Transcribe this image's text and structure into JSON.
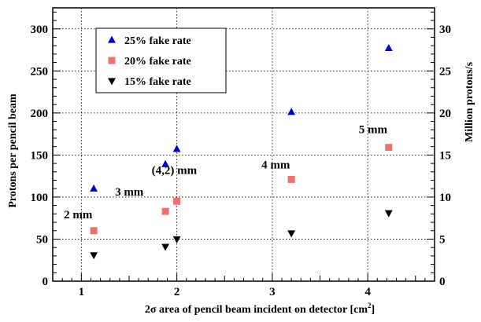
{
  "chart_data": {
    "type": "scatter",
    "xlabel": "2σ area of pencil beam incident on detector [cm²]",
    "xlabel_main": "2σ area of pencil beam incident on detector [cm",
    "xlabel_sup": "2",
    "xlabel_end": "]",
    "ylabel": "Protons per pencil beam",
    "y2label": "Million protons/s",
    "xlim": [
      0.7,
      4.7
    ],
    "ylim": [
      0,
      325
    ],
    "y2lim": [
      0,
      32.5
    ],
    "xticks": [
      1,
      2,
      3,
      4
    ],
    "yticks": [
      0,
      50,
      100,
      150,
      200,
      250,
      300
    ],
    "y2ticks": [
      0,
      5,
      10,
      15,
      20,
      25,
      30
    ],
    "grid": true,
    "legend_position": "top-left",
    "series": [
      {
        "name": "25% fake rate",
        "marker": "triangle-up",
        "color": "#0000cc",
        "x": [
          1.13,
          1.88,
          2.0,
          3.2,
          4.22
        ],
        "y": [
          110,
          139,
          157,
          201,
          277
        ]
      },
      {
        "name": "20% fake rate",
        "marker": "square",
        "color": "#f07070",
        "x": [
          1.13,
          1.88,
          2.0,
          3.2,
          4.22
        ],
        "y": [
          60,
          83,
          95,
          121,
          159
        ]
      },
      {
        "name": "15% fake rate",
        "marker": "triangle-down",
        "color": "#000000",
        "x": [
          1.13,
          1.88,
          2.0,
          3.2,
          4.22
        ],
        "y": [
          31,
          41,
          50,
          57,
          81
        ]
      }
    ],
    "annotations": [
      {
        "text": "2 mm",
        "x": 1.13,
        "y": 60
      },
      {
        "text": "3 mm",
        "x": 1.88,
        "y": 83
      },
      {
        "text": "(4,2) mm",
        "x": 2.0,
        "y": 95
      },
      {
        "text": "4 mm",
        "x": 3.2,
        "y": 121
      },
      {
        "text": "5 mm",
        "x": 4.22,
        "y": 159
      }
    ]
  }
}
